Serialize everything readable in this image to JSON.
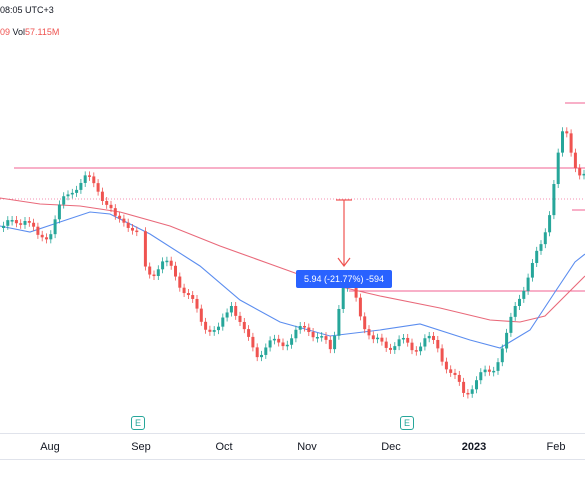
{
  "header": {
    "time_text": "08:05 UTC+3",
    "vol_prefix": "09",
    "vol_label": "Vol",
    "vol_value": "57.115M"
  },
  "x_axis": {
    "labels": [
      {
        "text": "Aug",
        "bold": false
      },
      {
        "text": "Sep",
        "bold": false
      },
      {
        "text": "Oct",
        "bold": false
      },
      {
        "text": "Nov",
        "bold": false
      },
      {
        "text": "Dec",
        "bold": false
      },
      {
        "text": "2023",
        "bold": true
      },
      {
        "text": "Feb",
        "bold": false
      }
    ]
  },
  "earnings_markers": [
    {
      "label": "E"
    },
    {
      "label": "E"
    }
  ],
  "measure_tool": {
    "label": "5.94 (-21.77%) -594"
  },
  "colors": {
    "up": "#26a69a",
    "down": "#ef5350",
    "ma_fast": "#5b8def",
    "ma_slow": "#e9697a",
    "level_line": "#f06292",
    "measure": "#2962ff"
  },
  "chart_data": {
    "type": "candlestick",
    "indicators": [
      "moving average (blue)",
      "moving average (pink)"
    ],
    "x_range": [
      "Jul",
      "Feb"
    ],
    "grid": false,
    "legend": "none"
  }
}
